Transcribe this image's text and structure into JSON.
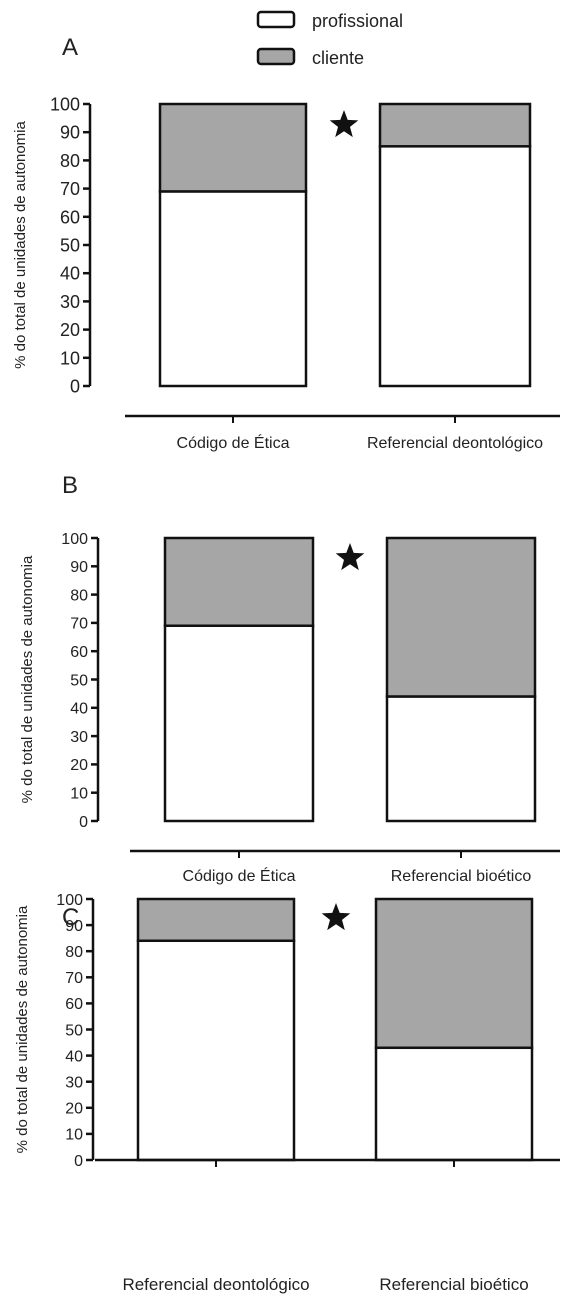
{
  "legend": {
    "items": [
      {
        "label": "profissional",
        "color": "#ffffff"
      },
      {
        "label": "cliente",
        "color": "#a6a6a6"
      }
    ]
  },
  "significance_marker": "★",
  "chart_data": [
    {
      "panel": "A",
      "type": "bar",
      "stacked": true,
      "categories": [
        "Código de Ética",
        "Referencial deontológico"
      ],
      "series": [
        {
          "name": "profissional",
          "values": [
            69,
            85
          ]
        },
        {
          "name": "cliente",
          "values": [
            31,
            15
          ]
        }
      ],
      "ylabel": "% do total de unidades de autonomia",
      "ylim": [
        0,
        100
      ],
      "yticks": [
        0,
        10,
        20,
        30,
        40,
        50,
        60,
        70,
        80,
        90,
        100
      ],
      "significance": "★"
    },
    {
      "panel": "B",
      "type": "bar",
      "stacked": true,
      "categories": [
        "Código de Ética",
        "Referencial bioético"
      ],
      "series": [
        {
          "name": "profissional",
          "values": [
            69,
            44
          ]
        },
        {
          "name": "cliente",
          "values": [
            31,
            56
          ]
        }
      ],
      "ylabel": "% do total de unidades de autonomia",
      "ylim": [
        0,
        100
      ],
      "yticks": [
        0,
        10,
        20,
        30,
        40,
        50,
        60,
        70,
        80,
        90,
        100
      ],
      "significance": "★"
    },
    {
      "panel": "C",
      "type": "bar",
      "stacked": true,
      "categories": [
        "Referencial deontológico",
        "Referencial bioético"
      ],
      "series": [
        {
          "name": "profissional",
          "values": [
            84,
            43
          ]
        },
        {
          "name": "cliente",
          "values": [
            16,
            57
          ]
        }
      ],
      "ylabel": "% do total de unidades de autonomia",
      "ylim": [
        0,
        100
      ],
      "yticks": [
        0,
        10,
        20,
        30,
        40,
        50,
        60,
        70,
        80,
        90,
        100
      ],
      "significance": "★"
    }
  ]
}
